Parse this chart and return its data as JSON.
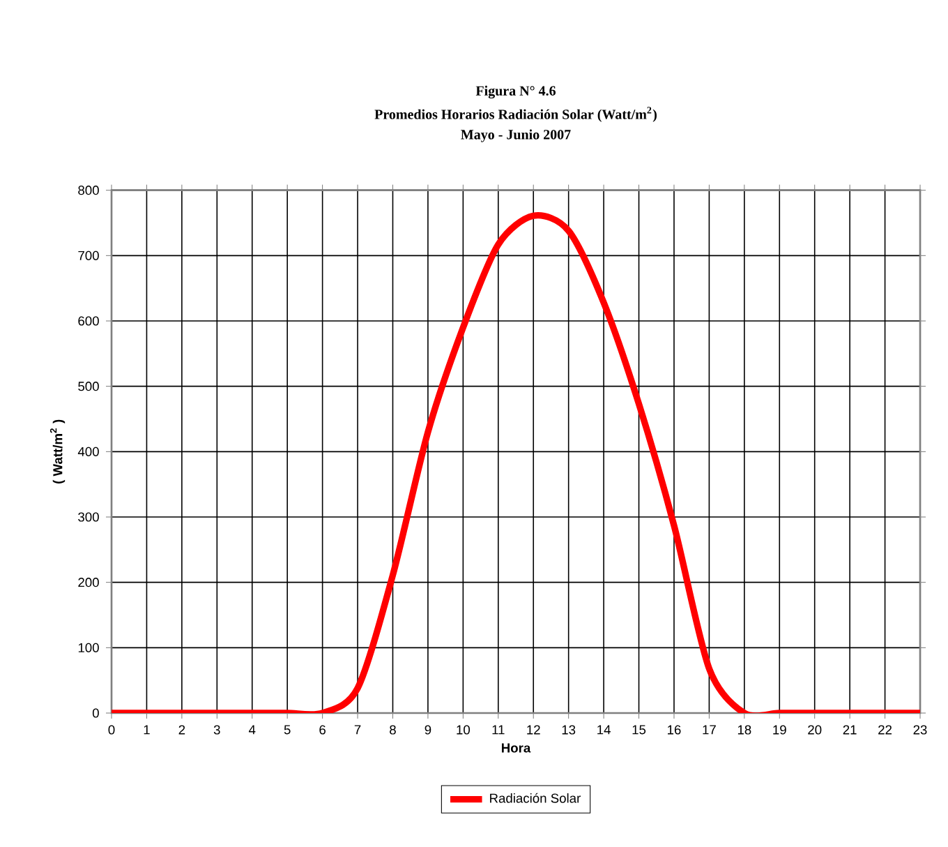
{
  "chart_data": {
    "type": "line",
    "title": "Figura N° 4.6",
    "subtitle": "Promedios Horarios Radiación Solar (Watt/m$^{2}$)",
    "annotations": [
      "Mayo - Junio 2007"
    ],
    "xlabel": "Hora",
    "ylabel": "( Watt/m$^{2}$ )",
    "x": [
      0,
      1,
      2,
      3,
      4,
      5,
      6,
      7,
      8,
      9,
      10,
      11,
      12,
      13,
      14,
      15,
      16,
      17,
      18,
      19,
      20,
      21,
      22,
      23
    ],
    "series": [
      {
        "name": "Radiación Solar",
        "color": "#ff0000",
        "values": [
          0,
          0,
          0,
          0,
          0,
          0,
          0,
          38,
          211,
          430,
          590,
          717,
          761,
          738,
          628,
          473,
          287,
          68,
          0,
          0,
          0,
          0,
          0,
          0
        ]
      }
    ],
    "xlim": [
      0,
      23
    ],
    "xticks": [
      0,
      1,
      2,
      3,
      4,
      5,
      6,
      7,
      8,
      9,
      10,
      11,
      12,
      13,
      14,
      15,
      16,
      17,
      18,
      19,
      20,
      21,
      22,
      23
    ],
    "ylim": [
      0,
      800
    ],
    "yticks": [
      0,
      100,
      200,
      300,
      400,
      500,
      600,
      700,
      800
    ],
    "grid": true,
    "legend": "bottom",
    "marker": "none",
    "line_style": "solid"
  }
}
